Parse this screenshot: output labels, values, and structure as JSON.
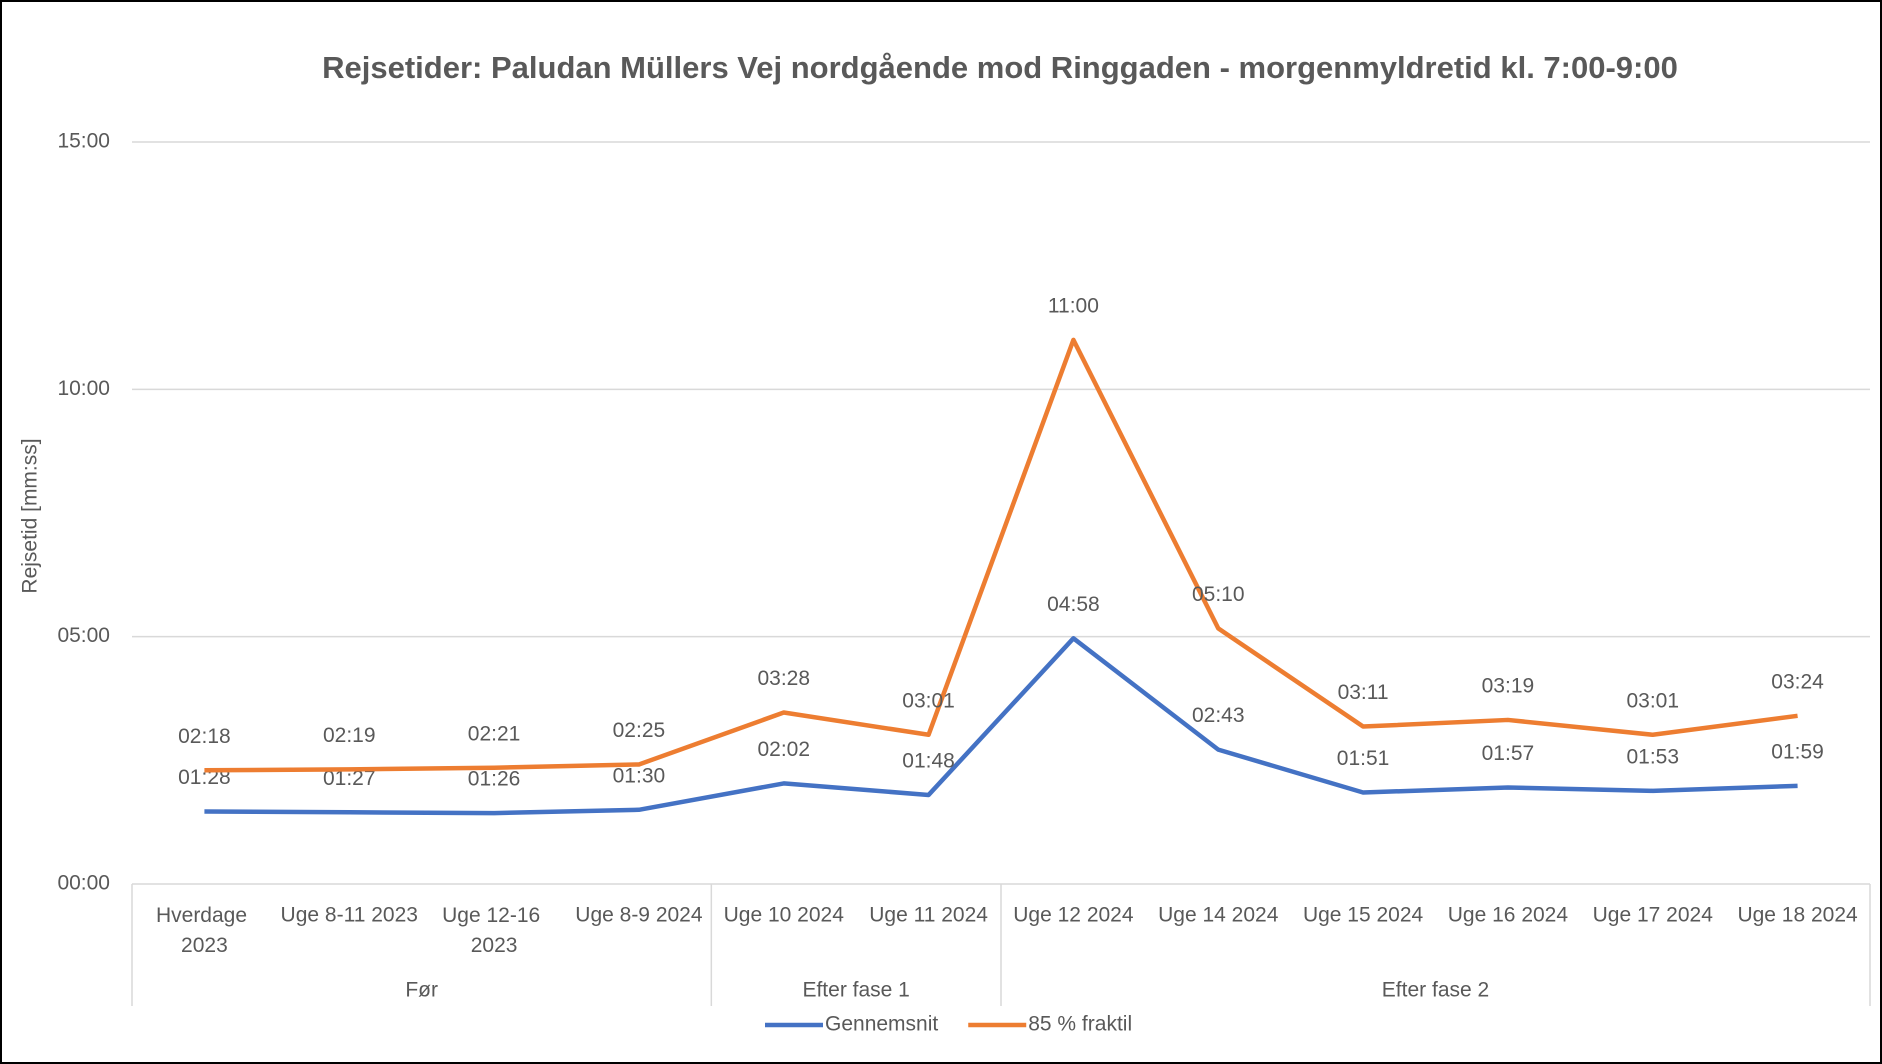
{
  "chart_data": {
    "type": "line",
    "title": "Rejsetider: Paludan Müllers Vej nordgående mod Ringgaden - morgenmyldretid kl. 7:00-9:00",
    "y_label": "Rejsetid [mm:ss]",
    "categories": [
      "Hverdage 2023",
      "Uge 8-11 2023",
      "Uge 12-16 2023",
      "Uge 8-9 2024",
      "Uge 10 2024",
      "Uge 11 2024",
      "Uge 12 2024",
      "Uge 14 2024",
      "Uge 15 2024",
      "Uge 16 2024",
      "Uge 17 2024",
      "Uge 18 2024"
    ],
    "category_groups": [
      "Før",
      "Før",
      "Før",
      "Før",
      "Efter fase 1",
      "Efter fase 1",
      "Efter fase 2",
      "Efter fase 2",
      "Efter fase 2",
      "Efter fase 2",
      "Efter fase 2",
      "Efter fase 2"
    ],
    "series": [
      {
        "name": "Gennemsnit",
        "color": "#4472c4",
        "values": [
          88,
          87,
          86,
          90,
          122,
          108,
          298,
          163,
          111,
          117,
          113,
          119
        ],
        "value_labels": [
          "01:28",
          "01:27",
          "01:26",
          "01:30",
          "02:02",
          "01:48",
          "04:58",
          "02:43",
          "01:51",
          "01:57",
          "01:53",
          "01:59"
        ]
      },
      {
        "name": "85 % fraktil",
        "color": "#ed7d31",
        "values": [
          138,
          139,
          141,
          145,
          208,
          181,
          660,
          310,
          191,
          199,
          181,
          204
        ],
        "value_labels": [
          "02:18",
          "02:19",
          "02:21",
          "02:25",
          "03:28",
          "03:01",
          "11:00",
          "05:10",
          "03:11",
          "03:19",
          "03:01",
          "03:24"
        ]
      }
    ],
    "ylim": [
      0,
      900
    ],
    "yticks": [
      {
        "value": 0,
        "label": "00:00"
      },
      {
        "value": 300,
        "label": "05:00"
      },
      {
        "value": 600,
        "label": "10:00"
      },
      {
        "value": 900,
        "label": "15:00"
      }
    ],
    "grid": true,
    "legend": "bottom"
  }
}
